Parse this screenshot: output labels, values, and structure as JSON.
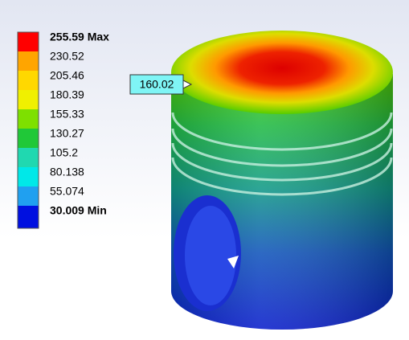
{
  "legend": {
    "labels": [
      "255.59 Max",
      "230.52",
      "205.46",
      "180.39",
      "155.33",
      "130.27",
      "105.2",
      "80.138",
      "55.074",
      "30.009 Min"
    ]
  },
  "probe": {
    "label": "160.02"
  }
}
